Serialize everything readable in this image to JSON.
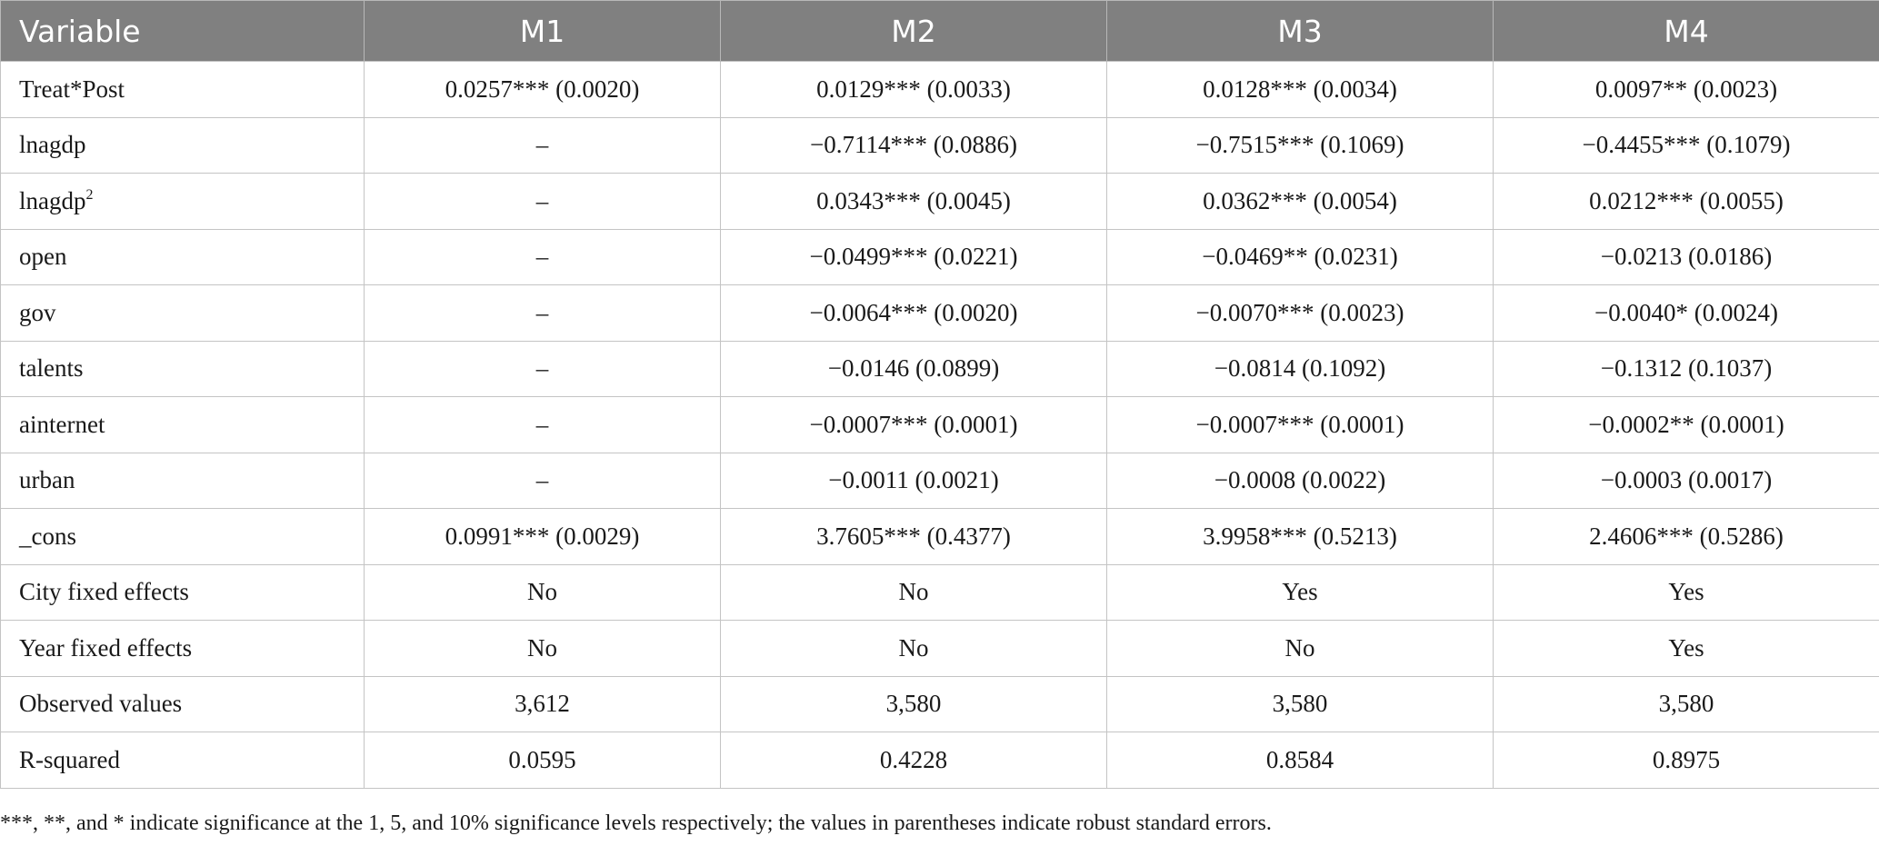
{
  "table": {
    "headers": [
      "Variable",
      "M1",
      "M2",
      "M3",
      "M4"
    ],
    "rows": [
      {
        "variable": "Treat*Post",
        "sup": "",
        "values": [
          "0.0257*** (0.0020)",
          "0.0129*** (0.0033)",
          "0.0128*** (0.0034)",
          "0.0097** (0.0023)"
        ]
      },
      {
        "variable": "lnagdp",
        "sup": "",
        "values": [
          "–",
          "−0.7114*** (0.0886)",
          "−0.7515*** (0.1069)",
          "−0.4455*** (0.1079)"
        ]
      },
      {
        "variable": "lnagdp",
        "sup": "2",
        "values": [
          "–",
          "0.0343*** (0.0045)",
          "0.0362*** (0.0054)",
          "0.0212*** (0.0055)"
        ]
      },
      {
        "variable": "open",
        "sup": "",
        "values": [
          "–",
          "−0.0499*** (0.0221)",
          "−0.0469** (0.0231)",
          "−0.0213 (0.0186)"
        ]
      },
      {
        "variable": "gov",
        "sup": "",
        "values": [
          "–",
          "−0.0064*** (0.0020)",
          "−0.0070*** (0.0023)",
          "−0.0040* (0.0024)"
        ]
      },
      {
        "variable": "talents",
        "sup": "",
        "values": [
          "–",
          "−0.0146 (0.0899)",
          "−0.0814 (0.1092)",
          "−0.1312 (0.1037)"
        ]
      },
      {
        "variable": "ainternet",
        "sup": "",
        "values": [
          "–",
          "−0.0007*** (0.0001)",
          "−0.0007*** (0.0001)",
          "−0.0002** (0.0001)"
        ]
      },
      {
        "variable": "urban",
        "sup": "",
        "values": [
          "–",
          "−0.0011 (0.0021)",
          "−0.0008 (0.0022)",
          "−0.0003 (0.0017)"
        ]
      },
      {
        "variable": "_cons",
        "sup": "",
        "values": [
          "0.0991*** (0.0029)",
          "3.7605*** (0.4377)",
          "3.9958*** (0.5213)",
          "2.4606*** (0.5286)"
        ]
      },
      {
        "variable": "City fixed effects",
        "sup": "",
        "values": [
          "No",
          "No",
          "Yes",
          "Yes"
        ]
      },
      {
        "variable": "Year fixed effects",
        "sup": "",
        "values": [
          "No",
          "No",
          "No",
          "Yes"
        ]
      },
      {
        "variable": "Observed values",
        "sup": "",
        "values": [
          "3,612",
          "3,580",
          "3,580",
          "3,580"
        ]
      },
      {
        "variable": "R-squared",
        "sup": "",
        "values": [
          "0.0595",
          "0.4228",
          "0.8584",
          "0.8975"
        ]
      }
    ]
  },
  "note": "***, **, and * indicate significance at the 1, 5, and 10% significance levels respectively; the values in parentheses indicate robust standard errors."
}
